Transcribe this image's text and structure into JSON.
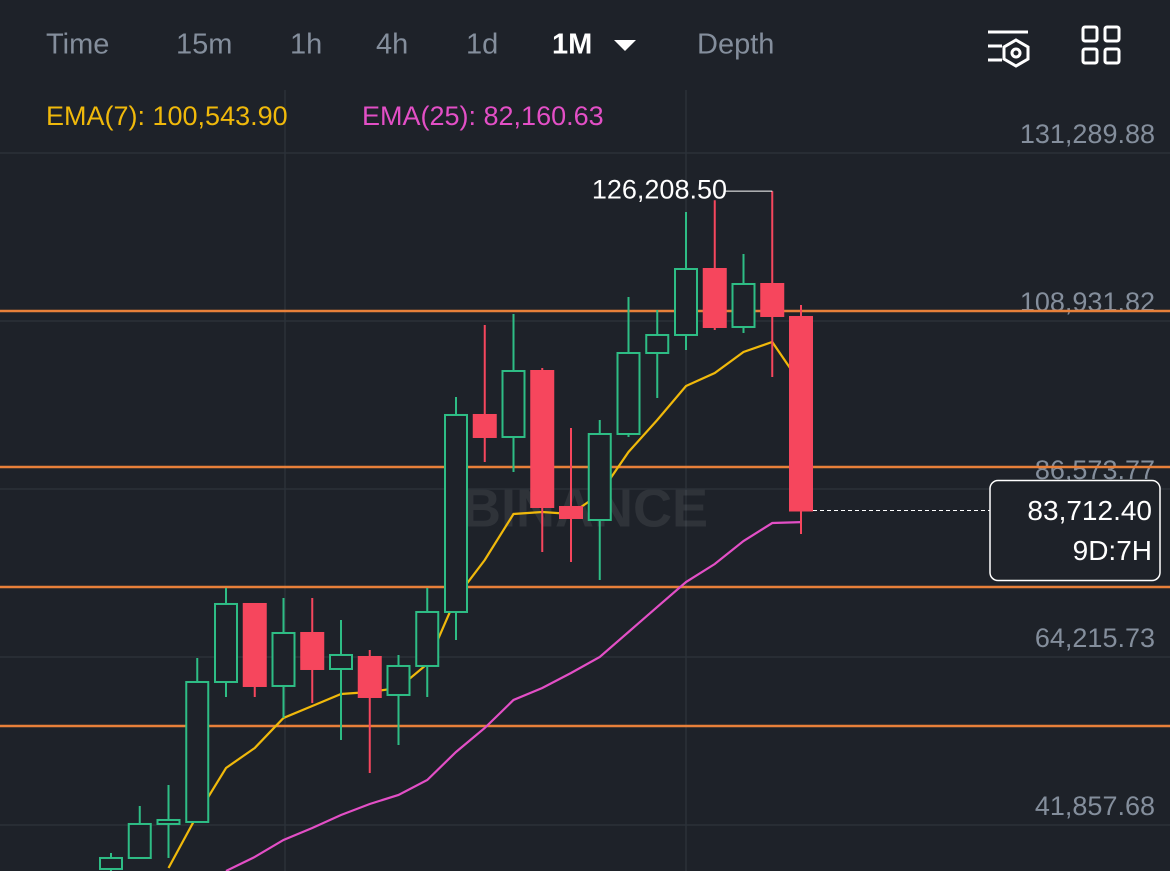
{
  "toolbar": {
    "tabs": [
      "Time",
      "15m",
      "1h",
      "4h",
      "1d",
      "1M",
      "Depth"
    ],
    "active": 5
  },
  "chart_data": {
    "type": "candlestick",
    "open": [
      36004,
      37468,
      41993,
      42259,
      60890,
      71271,
      60358,
      67411,
      62620,
      64217,
      59160,
      63020,
      70206,
      96423,
      93495,
      102278,
      84179,
      82449,
      93894,
      104674,
      107069,
      115852,
      108134,
      113856,
      109465
    ],
    "high": [
      38134,
      44389,
      47183,
      64084,
      73400,
      71271,
      72069,
      72069,
      69141,
      65149,
      64484,
      73400,
      98818,
      108400,
      109864,
      102678,
      94693,
      95757,
      112126,
      110396,
      123438,
      125000,
      117849,
      126208.5,
      111062
    ],
    "low": [
      35738,
      37468,
      37468,
      42259,
      58894,
      58894,
      56100,
      58096,
      53172,
      48780,
      52506,
      58894,
      66480,
      90168,
      88837,
      78191,
      76860,
      74465,
      93495,
      98685,
      105073,
      107735,
      107335,
      101480,
      80586
    ],
    "close": [
      37468,
      41993,
      42525,
      60890,
      71271,
      60358,
      67411,
      62620,
      64484,
      58894,
      63020,
      70206,
      96423,
      93495,
      102278,
      84179,
      82716,
      93894,
      104674,
      107069,
      115852,
      108134,
      113856,
      109598,
      83712.4
    ],
    "up_color": "#2ebd85",
    "down_color": "#f6465d",
    "series": [
      {
        "name": "EMA(7): 100,543.90",
        "color": "#f0b90b",
        "values": [
          null,
          null,
          36138,
          43191,
          49445,
          52107,
          56100,
          57697,
          59294,
          59560,
          60092,
          63286,
          72069,
          77126,
          83248,
          83514,
          83248,
          85910,
          91499,
          95757,
          100282,
          102012,
          104807,
          106137,
          100543.9
        ]
      },
      {
        "name": "EMA(25): 82,160.63",
        "color": "#e34fc6",
        "values": [
          null,
          null,
          null,
          null,
          35738,
          37604,
          39864,
          41461,
          43191,
          44655,
          45853,
          47849,
          51575,
          54769,
          58495,
          60092,
          62088,
          64217,
          67544,
          70874,
          74196,
          76591,
          79652,
          82047,
          82160.63
        ]
      }
    ],
    "ylim": [
      35736,
      139674
    ],
    "yticks": [
      {
        "value": 131289.88,
        "label": "131,289.88"
      },
      {
        "value": 108931.82,
        "label": "108,931.82"
      },
      {
        "value": 86573.77,
        "label": "86,573.77"
      },
      {
        "value": 64215.73,
        "label": "64,215.73"
      },
      {
        "value": 41857.68,
        "label": "41,857.68"
      }
    ],
    "grid": true,
    "levels": [
      110262,
      89505,
      73532,
      55034
    ],
    "level_color": "#e8803a",
    "max_label": "126,208.50",
    "last_close_label": "83,712.40",
    "countdown": "9D:7H",
    "watermark": "BINANCE"
  }
}
